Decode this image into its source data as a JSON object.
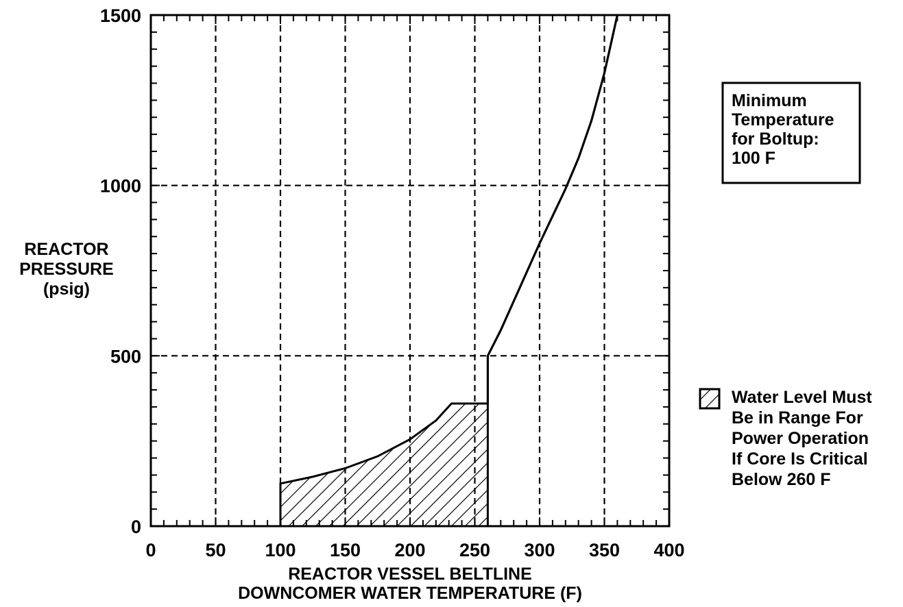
{
  "chart_data": {
    "type": "line",
    "title": "",
    "xlabel": [
      "REACTOR VESSEL BELTLINE",
      "DOWNCOMER WATER TEMPERATURE (F)"
    ],
    "ylabel": [
      "REACTOR",
      "PRESSURE",
      "(psig)"
    ],
    "xlim": [
      0,
      400
    ],
    "ylim": [
      0,
      1500
    ],
    "x_ticks": [
      "0",
      "50",
      "100",
      "150",
      "200",
      "250",
      "300",
      "350",
      "400"
    ],
    "y_ticks": [
      "0",
      "500",
      "1000",
      "1500"
    ],
    "grid": true,
    "x_grid_values": [
      50,
      100,
      150,
      200,
      250,
      300,
      350
    ],
    "y_grid_values": [
      500,
      1000
    ],
    "x_minor_step": 10,
    "y_minor_step": 50,
    "series": [
      {
        "x": [
          260,
          260,
          270,
          280,
          290,
          300,
          310,
          320,
          330,
          340,
          350,
          360
        ],
        "y": [
          360,
          500,
          575,
          660,
          745,
          830,
          910,
          990,
          1080,
          1190,
          1330,
          1500
        ]
      }
    ],
    "hatched_region": {
      "upper_x": [
        100,
        125,
        150,
        175,
        200,
        220,
        232,
        260
      ],
      "upper_y": [
        125,
        145,
        170,
        205,
        255,
        310,
        360,
        360
      ],
      "baseline_y": 0
    },
    "annotations": [
      {
        "position": "top-right",
        "boxed": true,
        "lines": [
          "Minimum",
          "Temperature",
          "for Boltup:",
          "100 F"
        ]
      },
      {
        "position": "right",
        "legend_symbol": "hatched-square",
        "lines": [
          "Water Level Must",
          "Be in Range For",
          "Power Operation",
          "If Core Is Critical",
          "Below 260 F"
        ]
      }
    ]
  }
}
